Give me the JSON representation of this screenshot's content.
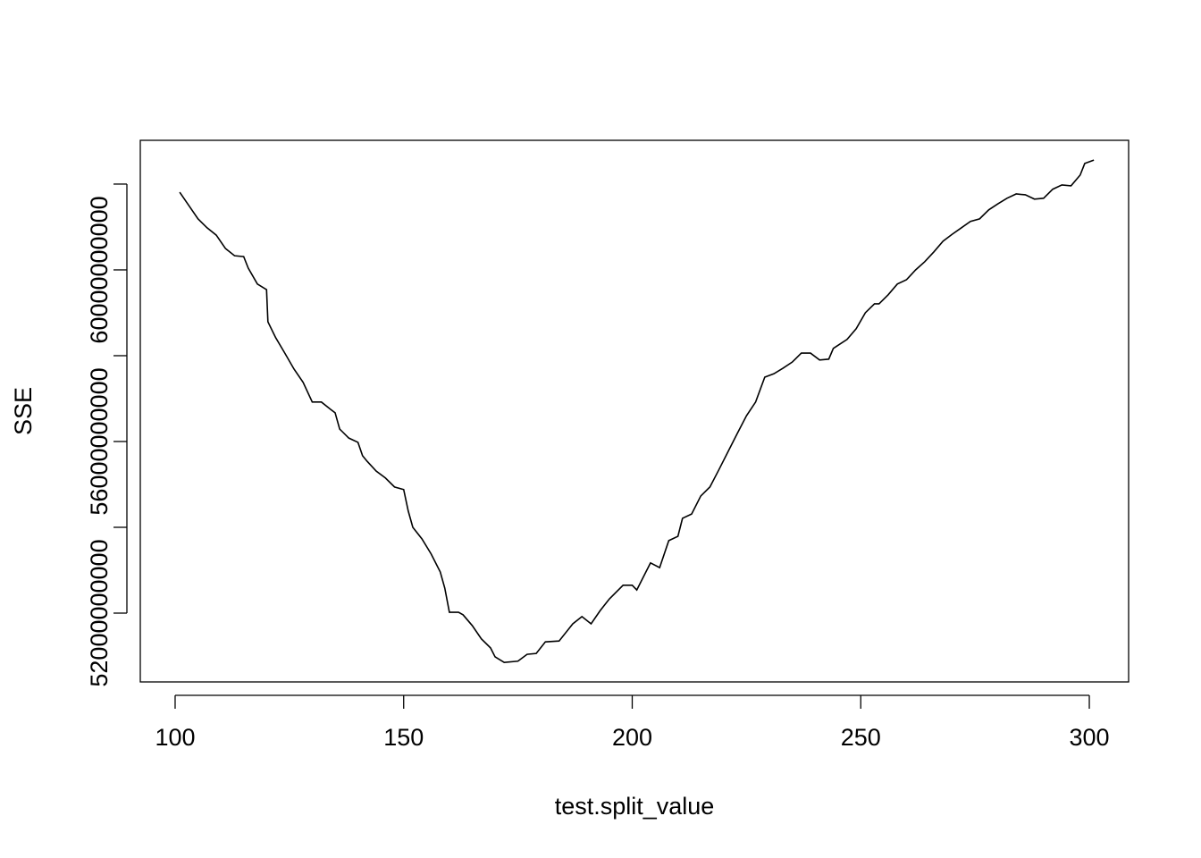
{
  "chart_data": {
    "type": "line",
    "x_label": "test.split_value",
    "y_label": "SSE",
    "x": [
      101,
      103,
      105,
      107,
      109,
      111,
      113,
      115,
      116,
      118,
      120,
      120.3,
      122,
      124,
      126,
      128,
      130,
      132,
      134,
      135,
      136,
      138,
      140,
      141,
      142,
      144,
      146,
      148,
      150,
      151,
      152,
      154,
      156,
      158,
      159,
      160,
      162,
      163,
      165,
      167,
      169,
      170,
      172,
      175,
      177,
      179,
      181,
      184,
      187,
      189,
      191,
      193,
      195,
      198,
      200,
      201,
      203,
      204,
      206,
      208,
      210,
      211,
      213,
      215,
      217,
      219,
      221,
      223,
      225,
      227,
      229,
      231,
      233,
      235,
      237,
      239,
      241,
      243,
      244,
      247,
      249,
      251,
      253,
      254,
      256,
      258,
      260,
      262,
      264,
      266,
      268,
      270,
      272,
      274,
      276,
      278,
      280,
      282,
      284,
      286,
      288,
      290,
      292,
      294,
      296,
      298,
      299,
      301
    ],
    "values": [
      61810000000,
      61500000000,
      61190000000,
      60980000000,
      60810000000,
      60500000000,
      60330000000,
      60310000000,
      60040000000,
      59670000000,
      59540000000,
      58790000000,
      58420000000,
      58060000000,
      57690000000,
      57380000000,
      56920000000,
      56920000000,
      56750000000,
      56670000000,
      56290000000,
      56080000000,
      55980000000,
      55670000000,
      55540000000,
      55310000000,
      55150000000,
      54940000000,
      54880000000,
      54380000000,
      54000000000,
      53730000000,
      53380000000,
      52960000000,
      52580000000,
      52020000000,
      52020000000,
      51960000000,
      51710000000,
      51400000000,
      51190000000,
      50980000000,
      50850000000,
      50880000000,
      51040000000,
      51060000000,
      51330000000,
      51350000000,
      51750000000,
      51920000000,
      51750000000,
      52060000000,
      52330000000,
      52650000000,
      52650000000,
      52540000000,
      52960000000,
      53170000000,
      53060000000,
      53690000000,
      53790000000,
      54210000000,
      54310000000,
      54730000000,
      54940000000,
      55350000000,
      55770000000,
      56190000000,
      56600000000,
      56920000000,
      57500000000,
      57580000000,
      57710000000,
      57850000000,
      58060000000,
      58060000000,
      57900000000,
      57920000000,
      58170000000,
      58380000000,
      58630000000,
      59000000000,
      59210000000,
      59210000000,
      59420000000,
      59670000000,
      59770000000,
      60000000000,
      60190000000,
      60420000000,
      60670000000,
      60830000000,
      60980000000,
      61130000000,
      61190000000,
      61400000000,
      61540000000,
      61670000000,
      61770000000,
      61750000000,
      61650000000,
      61670000000,
      61880000000,
      61980000000,
      61960000000,
      62210000000,
      62480000000,
      62560000000
    ],
    "color": "#000000",
    "xlim": [
      92.38,
      308.6
    ],
    "xticks": [
      100,
      150,
      200,
      250,
      300
    ],
    "ylim": [
      50396000000,
      63020000000
    ],
    "yticks": [
      52000000000,
      54000000000,
      56000000000,
      58000000000,
      60000000000,
      62000000000
    ]
  }
}
